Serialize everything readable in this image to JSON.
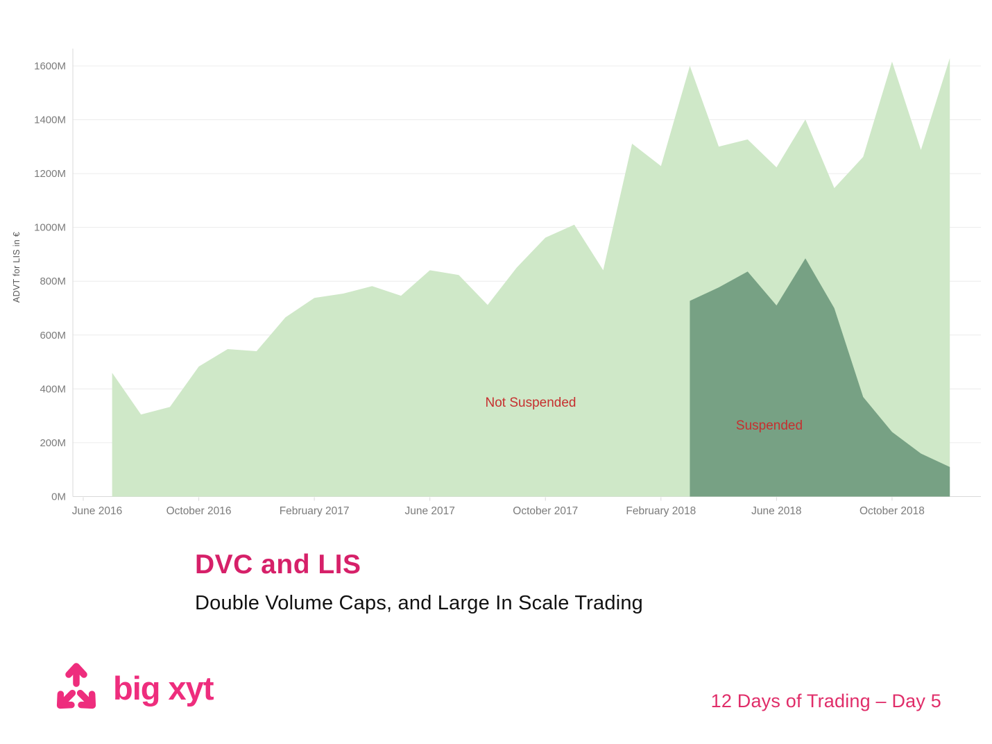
{
  "chart_data": {
    "type": "area",
    "title": "",
    "xlabel": "",
    "ylabel": "ADVT for LIS in €",
    "ylim": [
      0,
      1600
    ],
    "y_ticks": [
      "0M",
      "200M",
      "400M",
      "600M",
      "800M",
      "1000M",
      "1200M",
      "1400M",
      "1600M"
    ],
    "x_ticks": [
      "June 2016",
      "October 2016",
      "February 2017",
      "June 2017",
      "October 2017",
      "February 2018",
      "June 2018",
      "October 2018"
    ],
    "x": [
      "2016-07",
      "2016-08",
      "2016-09",
      "2016-10",
      "2016-11",
      "2016-12",
      "2017-01",
      "2017-02",
      "2017-03",
      "2017-04",
      "2017-05",
      "2017-06",
      "2017-07",
      "2017-08",
      "2017-09",
      "2017-10",
      "2017-11",
      "2017-12",
      "2018-01",
      "2018-02",
      "2018-03",
      "2018-04",
      "2018-05",
      "2018-06",
      "2018-07",
      "2018-08",
      "2018-09",
      "2018-10",
      "2018-11",
      "2018-12"
    ],
    "unit": "millions of EUR",
    "grid": true,
    "legend_position": "inline-annotations",
    "series": [
      {
        "name": "Not Suspended",
        "color": "#cfe8c8",
        "start": "2016-07",
        "values": [
          460,
          305,
          333,
          483,
          548,
          540,
          666,
          738,
          754,
          782,
          746,
          841,
          823,
          712,
          850,
          962,
          1010,
          841,
          1311,
          1228,
          1600,
          1300,
          1327,
          1223,
          1401,
          1146,
          1262,
          1616,
          1288,
          1629
        ]
      },
      {
        "name": "Suspended",
        "color": "#77a184",
        "start": "2018-03",
        "values": [
          727,
          777,
          836,
          710,
          885,
          700,
          370,
          240,
          160,
          110
        ]
      }
    ],
    "annotations": [
      {
        "text": "Not Suspended",
        "color": "#c62f2f"
      },
      {
        "text": "Suspended",
        "color": "#c62f2f"
      }
    ],
    "axis_text_color": "#7b7b7b",
    "axis_title_color": "#565656",
    "gridline_color": "#ececec",
    "axis_line_color": "#d9d9d9"
  },
  "title_block": {
    "title": "DVC and LIS",
    "title_color": "#d62069",
    "subtitle": "Double Volume Caps, and Large In Scale Trading"
  },
  "footer": {
    "brand": "big xyt",
    "brand_color": "#ee2d7d",
    "note": "12 Days of Trading – Day 5",
    "note_color": "#e02d69"
  }
}
